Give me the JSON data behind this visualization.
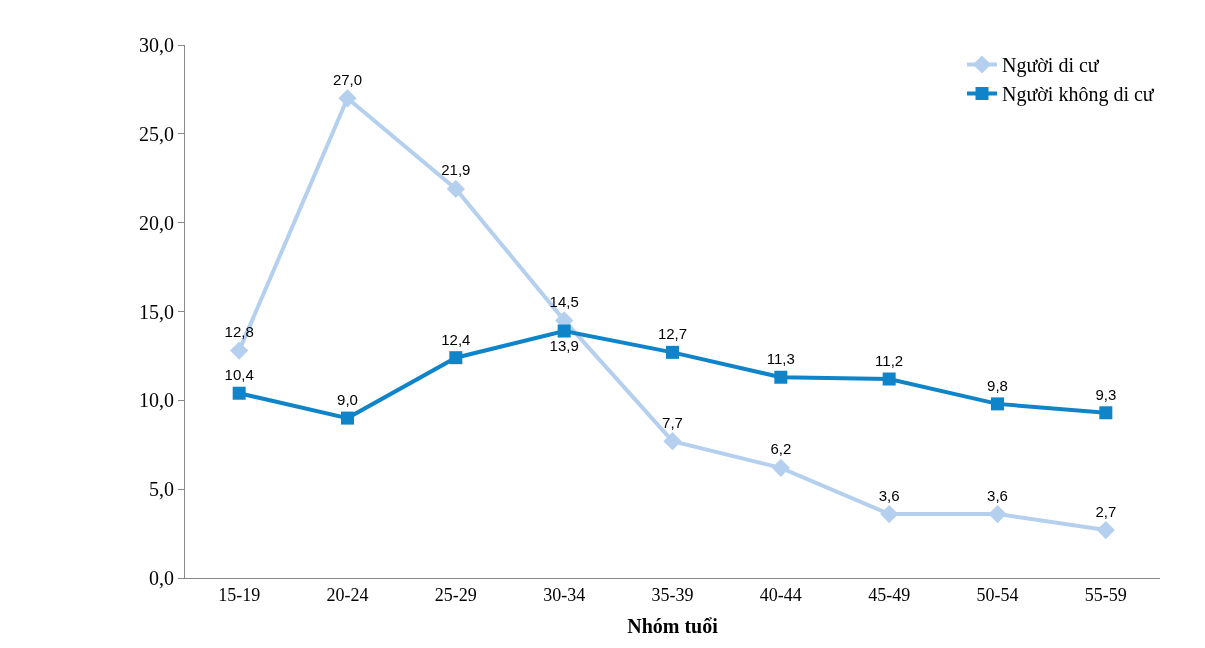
{
  "chart_data": {
    "type": "line",
    "xlabel": "Nhóm tuổi",
    "categories": [
      "15-19",
      "20-24",
      "25-29",
      "30-34",
      "35-39",
      "40-44",
      "45-49",
      "50-54",
      "55-59"
    ],
    "series": [
      {
        "name": "Người di cư",
        "color": "#b4d0ee",
        "marker": "diamond",
        "values": [
          12.8,
          27.0,
          21.9,
          14.5,
          7.7,
          6.2,
          3.6,
          3.6,
          2.7
        ],
        "value_labels": [
          "12,8",
          "27,0",
          "21,9",
          "14,5",
          "7,7",
          "6,2",
          "3,6",
          "3,6",
          "2,7"
        ]
      },
      {
        "name": "Người không di cư",
        "color": "#0f84c8",
        "marker": "square",
        "values": [
          10.4,
          9.0,
          12.4,
          13.9,
          12.7,
          11.3,
          11.2,
          9.8,
          9.3
        ],
        "value_labels": [
          "10,4",
          "9,0",
          "12,4",
          "13,9",
          "12,7",
          "11,3",
          "11,2",
          "9,8",
          "9,3"
        ]
      }
    ],
    "ylim": [
      0,
      30
    ],
    "yticks": [
      {
        "value": 0,
        "label": "0,0"
      },
      {
        "value": 5,
        "label": "5,0"
      },
      {
        "value": 10,
        "label": "10,0"
      },
      {
        "value": 15,
        "label": "15,0"
      },
      {
        "value": 20,
        "label": "20,0"
      },
      {
        "value": 25,
        "label": "25,0"
      },
      {
        "value": 30,
        "label": "30,0"
      }
    ],
    "legend": "top right",
    "line_style": "solid"
  }
}
